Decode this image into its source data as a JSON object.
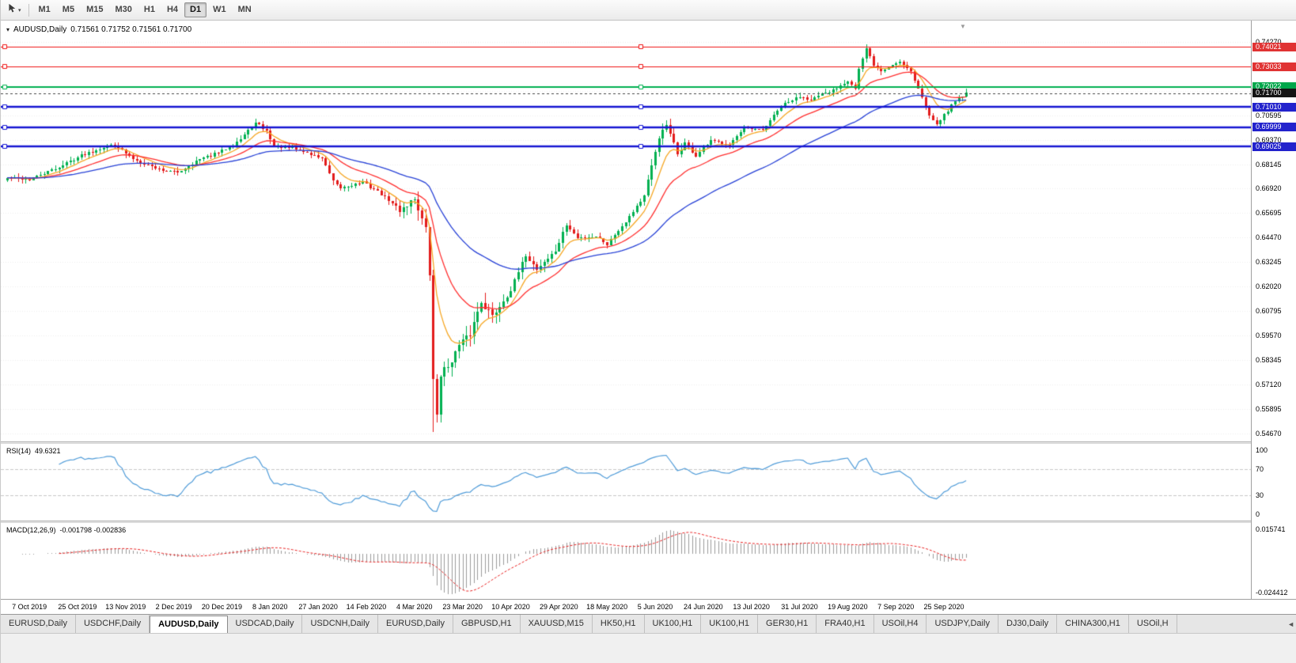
{
  "toolbar": {
    "timeframes": [
      {
        "label": "M1",
        "active": false
      },
      {
        "label": "M5",
        "active": false
      },
      {
        "label": "M15",
        "active": false
      },
      {
        "label": "M30",
        "active": false
      },
      {
        "label": "H1",
        "active": false
      },
      {
        "label": "H4",
        "active": false
      },
      {
        "label": "D1",
        "active": true
      },
      {
        "label": "W1",
        "active": false
      },
      {
        "label": "MN",
        "active": false
      }
    ]
  },
  "chart": {
    "symbol_period": "AUDUSD,Daily",
    "ohlc_text": "0.71561 0.71752 0.71561 0.71700"
  },
  "chart_data": {
    "type": "candlestick",
    "symbol": "AUDUSD",
    "period": "Daily",
    "candle_count": 260,
    "ohlc_display": {
      "open": "0.71561",
      "high": "0.71752",
      "low": "0.71561",
      "close": "0.71700"
    },
    "x_labels": [
      "7 Oct 2019",
      "25 Oct 2019",
      "13 Nov 2019",
      "2 Dec 2019",
      "20 Dec 2019",
      "8 Jan 2020",
      "27 Jan 2020",
      "14 Feb 2020",
      "4 Mar 2020",
      "23 Mar 2020",
      "10 Apr 2020",
      "29 Apr 2020",
      "18 May 2020",
      "5 Jun 2020",
      "24 Jun 2020",
      "13 Jul 2020",
      "31 Jul 2020",
      "19 Aug 2020",
      "7 Sep 2020",
      "25 Sep 2020"
    ],
    "y_axis": {
      "price_top": 0.7533,
      "price_bottom": 0.5427,
      "grid_step": 0.01225,
      "ticks": [
        "0.74270",
        "0.73045",
        "0.71820",
        "0.70595",
        "0.69370",
        "0.68145",
        "0.66920",
        "0.65695",
        "0.64470",
        "0.63245",
        "0.62020",
        "0.60795",
        "0.59570",
        "0.58345",
        "0.57120",
        "0.55895",
        "0.54670"
      ]
    },
    "price_path_anchors": [
      [
        0,
        0.6745
      ],
      [
        6,
        0.6738
      ],
      [
        14,
        0.68
      ],
      [
        20,
        0.686
      ],
      [
        26,
        0.69
      ],
      [
        29,
        0.6915
      ],
      [
        33,
        0.685
      ],
      [
        41,
        0.679
      ],
      [
        46,
        0.6772
      ],
      [
        51,
        0.683
      ],
      [
        58,
        0.688
      ],
      [
        63,
        0.694
      ],
      [
        67,
        0.702
      ],
      [
        70,
        0.698
      ],
      [
        72,
        0.6905
      ],
      [
        78,
        0.689
      ],
      [
        85,
        0.6845
      ],
      [
        88,
        0.6725
      ],
      [
        90,
        0.6695
      ],
      [
        96,
        0.6725
      ],
      [
        101,
        0.6665
      ],
      [
        106,
        0.6585
      ],
      [
        110,
        0.6645
      ],
      [
        113,
        0.6485
      ],
      [
        114,
        0.6265
      ],
      [
        115,
        0.573
      ],
      [
        116,
        0.5565
      ],
      [
        117,
        0.5765
      ],
      [
        119,
        0.5805
      ],
      [
        122,
        0.5905
      ],
      [
        125,
        0.5965
      ],
      [
        128,
        0.613
      ],
      [
        131,
        0.6055
      ],
      [
        136,
        0.6185
      ],
      [
        140,
        0.636
      ],
      [
        143,
        0.629
      ],
      [
        148,
        0.638
      ],
      [
        151,
        0.651
      ],
      [
        154,
        0.6445
      ],
      [
        159,
        0.6455
      ],
      [
        162,
        0.6415
      ],
      [
        167,
        0.653
      ],
      [
        172,
        0.6655
      ],
      [
        176,
        0.695
      ],
      [
        178,
        0.701
      ],
      [
        181,
        0.6865
      ],
      [
        183,
        0.692
      ],
      [
        186,
        0.6855
      ],
      [
        190,
        0.693
      ],
      [
        195,
        0.6915
      ],
      [
        199,
        0.699
      ],
      [
        204,
        0.6985
      ],
      [
        209,
        0.7105
      ],
      [
        214,
        0.7155
      ],
      [
        217,
        0.714
      ],
      [
        222,
        0.7175
      ],
      [
        227,
        0.7235
      ],
      [
        229,
        0.7195
      ],
      [
        230,
        0.729
      ],
      [
        232,
        0.739
      ],
      [
        234,
        0.731
      ],
      [
        236,
        0.728
      ],
      [
        238,
        0.73
      ],
      [
        241,
        0.733
      ],
      [
        243,
        0.73
      ],
      [
        244,
        0.728
      ],
      [
        247,
        0.715
      ],
      [
        249,
        0.706
      ],
      [
        251,
        0.702
      ],
      [
        253,
        0.706
      ],
      [
        255,
        0.711
      ],
      [
        257,
        0.715
      ],
      [
        259,
        0.717
      ]
    ],
    "special_candles": {
      "115": {
        "low": 0.5475
      },
      "232": {
        "high": 0.7414
      },
      "251": {
        "low": 0.7005
      }
    },
    "candle_colors": {
      "bull": "#00b050",
      "bear": "#e31b1b"
    },
    "moving_averages": [
      {
        "name": "ma-fast",
        "period": 8,
        "color": "#f5a623"
      },
      {
        "name": "ma-mid",
        "period": 20,
        "color": "#ff2e2e"
      },
      {
        "name": "ma-slow",
        "period": 50,
        "color": "#2741d6"
      }
    ],
    "levels": [
      {
        "value": 0.74021,
        "label": "0.74021",
        "color": "#ee1111",
        "badge": "#e03333",
        "width": 1.2
      },
      {
        "value": 0.73033,
        "label": "0.73033",
        "color": "#ee1111",
        "badge": "#e03333",
        "width": 1.2
      },
      {
        "value": 0.72022,
        "label": "0.72022",
        "color": "#00b050",
        "badge": "#00a64a",
        "width": 2
      },
      {
        "value": 0.7101,
        "label": "0.71010",
        "color": "#1414d2",
        "badge": "#2222cc",
        "width": 2.4
      },
      {
        "value": 0.69999,
        "label": "0.69999",
        "color": "#1414d2",
        "badge": "#2222cc",
        "width": 2.4
      },
      {
        "value": 0.69025,
        "label": "0.69025",
        "color": "#1414d2",
        "badge": "#2222cc",
        "width": 2.4
      }
    ],
    "current_price": {
      "value": 0.717,
      "label": "0.71700",
      "badge_color": "#141414"
    },
    "indicators": {
      "rsi": {
        "label": "RSI(14)",
        "value_label": "49.6321",
        "period": 14,
        "color": "#4f9bd8",
        "scale_labels": [
          "100",
          "70",
          "30",
          "0"
        ],
        "scale_values": [
          100,
          70,
          30,
          0
        ],
        "guide_levels": [
          70,
          30
        ]
      },
      "macd": {
        "label": "MACD(12,26,9)",
        "value_label": "-0.001798 -0.002836",
        "fast": 12,
        "slow": 26,
        "signal": 9,
        "histogram_color": "#9a9a9a",
        "signal_color": "#e82020",
        "scale_top_label": "0.015741",
        "scale_top_value": 0.015741,
        "scale_bottom_label": "-0.024412",
        "scale_bottom_value": -0.024412
      }
    }
  },
  "tabs": {
    "scroll_icon": "◄",
    "items": [
      {
        "label": "EURUSD,Daily",
        "active": false
      },
      {
        "label": "USDCHF,Daily",
        "active": false
      },
      {
        "label": "AUDUSD,Daily",
        "active": true
      },
      {
        "label": "USDCAD,Daily",
        "active": false
      },
      {
        "label": "USDCNH,Daily",
        "active": false
      },
      {
        "label": "EURUSD,Daily",
        "active": false
      },
      {
        "label": "GBPUSD,H1",
        "active": false
      },
      {
        "label": "XAUUSD,M15",
        "active": false
      },
      {
        "label": "HK50,H1",
        "active": false
      },
      {
        "label": "UK100,H1",
        "active": false
      },
      {
        "label": "UK100,H1",
        "active": false
      },
      {
        "label": "GER30,H1",
        "active": false
      },
      {
        "label": "FRA40,H1",
        "active": false
      },
      {
        "label": "USOil,H4",
        "active": false
      },
      {
        "label": "USDJPY,Daily",
        "active": false
      },
      {
        "label": "DJ30,Daily",
        "active": false
      },
      {
        "label": "CHINA300,H1",
        "active": false
      },
      {
        "label": "USOil,H",
        "active": false
      }
    ]
  }
}
